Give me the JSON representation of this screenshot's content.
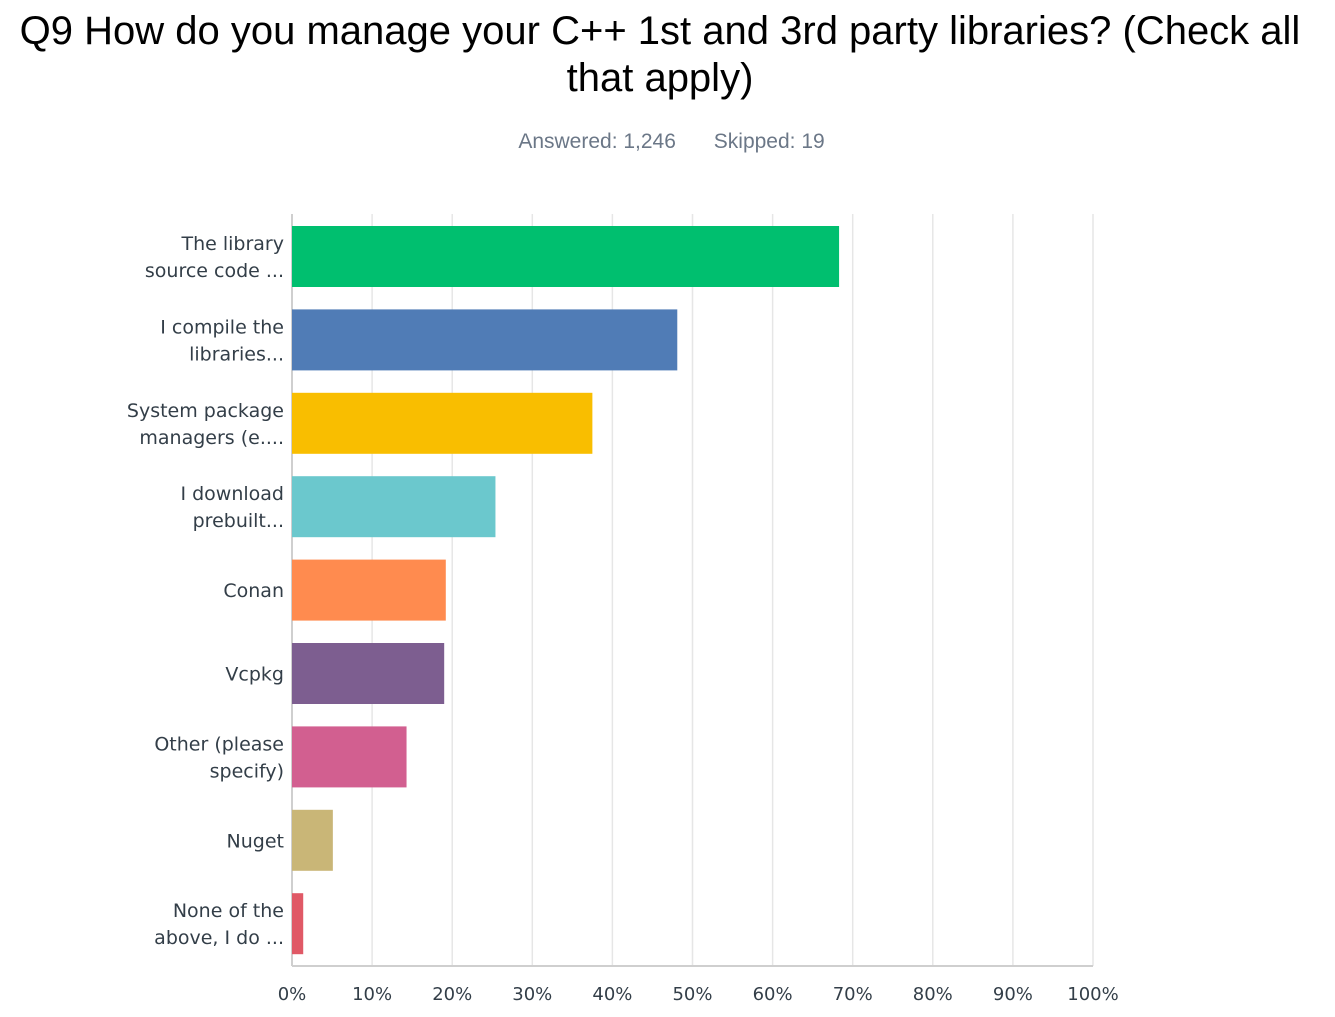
{
  "header": {
    "title": "Q9 How do you manage your C++ 1st and 3rd party libraries? (Check all that apply)",
    "answered": "Answered: 1,246",
    "skipped": "Skipped: 19"
  },
  "chart_data": {
    "type": "bar",
    "orientation": "horizontal",
    "categories": [
      [
        "The library",
        "source code ..."
      ],
      [
        "I compile the",
        "libraries..."
      ],
      [
        "System package",
        "managers (e...."
      ],
      [
        "I download",
        "prebuilt..."
      ],
      [
        "Conan"
      ],
      [
        "Vcpkg"
      ],
      [
        "Other (please",
        "specify)"
      ],
      [
        "Nuget"
      ],
      [
        "None of the",
        "above, I do ..."
      ]
    ],
    "values": [
      68.3,
      48.1,
      37.5,
      25.4,
      19.2,
      19.0,
      14.3,
      5.1,
      1.4
    ],
    "colors": [
      "#00bf6f",
      "#507cb6",
      "#f9be00",
      "#6bc8cd",
      "#ff8b4f",
      "#7d5e90",
      "#d25f90",
      "#c9b677",
      "#e05966"
    ],
    "xlim": [
      0,
      100
    ],
    "xticks": [
      "0%",
      "10%",
      "20%",
      "30%",
      "40%",
      "50%",
      "60%",
      "70%",
      "80%",
      "90%",
      "100%"
    ],
    "grid": true
  }
}
